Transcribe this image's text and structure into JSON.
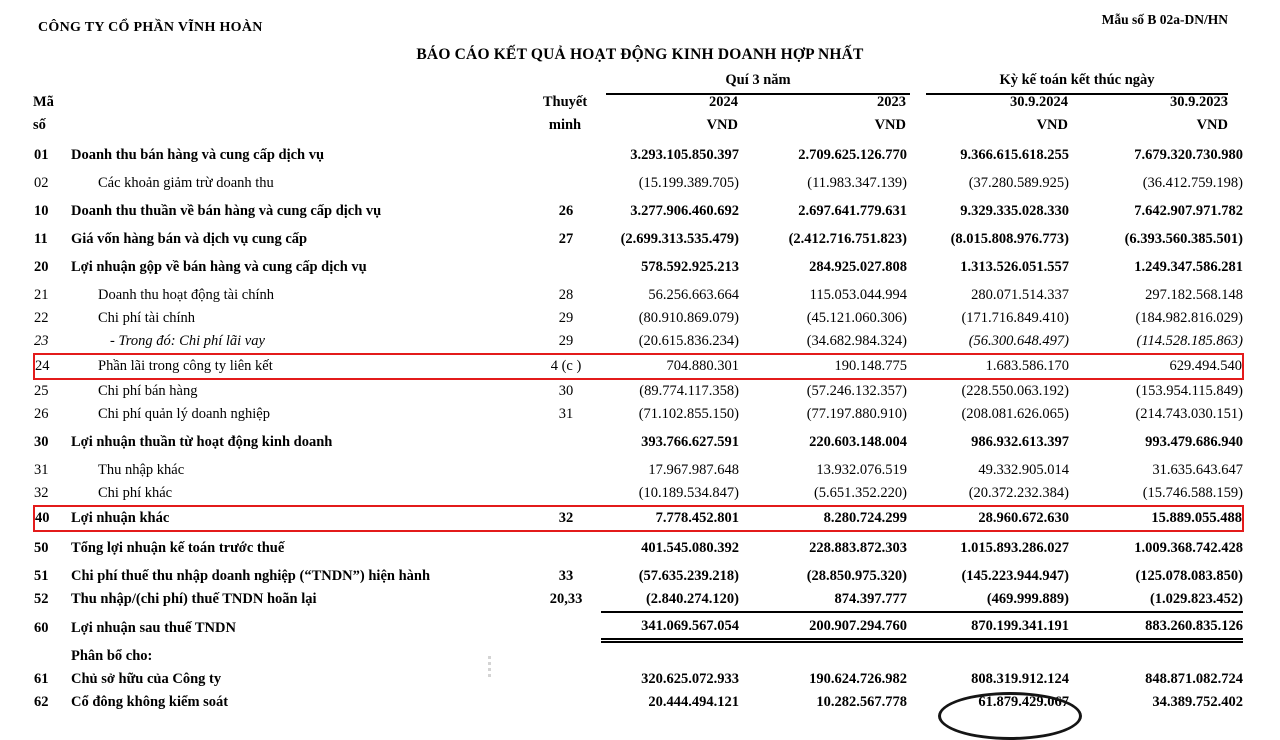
{
  "header": {
    "company": "CÔNG TY CỔ PHẦN VĨNH HOÀN",
    "form_number": "Mẫu số B 02a-DN/HN",
    "title": "BÁO CÁO KẾT QUẢ HOẠT ĐỘNG KINH DOANH HỢP NHẤT"
  },
  "columns": {
    "group_quarter": "Quí 3 năm",
    "group_ytd": "Kỳ kế toán kết thúc ngày",
    "code_line1": "Mã",
    "code_line2": "số",
    "note_line1": "Thuyết",
    "note_line2": "minh",
    "periods": [
      "2024",
      "2023",
      "30.9.2024",
      "30.9.2023"
    ],
    "currency": "VND"
  },
  "accent": {
    "highlight_border": "#e31b1b"
  },
  "table": {
    "rows": [
      {
        "code": "01",
        "label": "Doanh thu bán hàng và cung cấp dịch vụ",
        "note": "",
        "values": [
          "3.293.105.850.397",
          "2.709.625.126.770",
          "9.366.615.618.255",
          "7.679.320.730.980"
        ],
        "bold": true,
        "gap": false
      },
      {
        "code": "02",
        "label": "Các khoản giảm trừ doanh thu",
        "note": "",
        "values": [
          "(15.199.389.705)",
          "(11.983.347.139)",
          "(37.280.589.925)",
          "(36.412.759.198)"
        ],
        "indent": 1,
        "gap": true
      },
      {
        "code": "10",
        "label": "Doanh thu thuần về bán hàng và cung cấp dịch vụ",
        "note": "26",
        "values": [
          "3.277.906.460.692",
          "2.697.641.779.631",
          "9.329.335.028.330",
          "7.642.907.971.782"
        ],
        "bold": true,
        "gap": true
      },
      {
        "code": "11",
        "label": "Giá vốn hàng bán và dịch vụ cung cấp",
        "note": "27",
        "values": [
          "(2.699.313.535.479)",
          "(2.412.716.751.823)",
          "(8.015.808.976.773)",
          "(6.393.560.385.501)"
        ],
        "bold": true,
        "gap": true
      },
      {
        "code": "20",
        "label": "Lợi nhuận gộp về bán hàng và cung cấp dịch vụ",
        "note": "",
        "values": [
          "578.592.925.213",
          "284.925.027.808",
          "1.313.526.051.557",
          "1.249.347.586.281"
        ],
        "bold": true,
        "gap": true
      },
      {
        "code": "21",
        "label": "Doanh thu hoạt động tài chính",
        "note": "28",
        "values": [
          "56.256.663.664",
          "115.053.044.994",
          "280.071.514.337",
          "297.182.568.148"
        ],
        "indent": 1,
        "gap": true
      },
      {
        "code": "22",
        "label": "Chi phí tài chính",
        "note": "29",
        "values": [
          "(80.910.869.079)",
          "(45.121.060.306)",
          "(171.716.849.410)",
          "(184.982.816.029)"
        ],
        "indent": 1
      },
      {
        "code": "23",
        "label": "- Trong đó: Chi phí lãi vay",
        "note": "29",
        "values": [
          "(20.615.836.234)",
          "(34.682.984.324)",
          "(56.300.648.497)",
          "(114.528.185.863)"
        ],
        "indent": 2,
        "italic": true,
        "value_styles": [
          "norm",
          "norm",
          "ital",
          "ital"
        ]
      },
      {
        "code": "24",
        "label": "Phần lãi trong công ty liên kết",
        "note": "4 (c )",
        "values": [
          "704.880.301",
          "190.148.775",
          "1.683.586.170",
          "629.494.540"
        ],
        "indent": 1,
        "highlight": true
      },
      {
        "code": "25",
        "label": "Chi phí bán hàng",
        "note": "30",
        "values": [
          "(89.774.117.358)",
          "(57.246.132.357)",
          "(228.550.063.192)",
          "(153.954.115.849)"
        ],
        "indent": 1
      },
      {
        "code": "26",
        "label": "Chi phí quản lý doanh nghiệp",
        "note": "31",
        "values": [
          "(71.102.855.150)",
          "(77.197.880.910)",
          "(208.081.626.065)",
          "(214.743.030.151)"
        ],
        "indent": 1
      },
      {
        "code": "30",
        "label": "Lợi nhuận thuần từ hoạt động kinh doanh",
        "note": "",
        "values": [
          "393.766.627.591",
          "220.603.148.004",
          "986.932.613.397",
          "993.479.686.940"
        ],
        "bold": true,
        "gap": true
      },
      {
        "code": "31",
        "label": "Thu nhập khác",
        "note": "",
        "values": [
          "17.967.987.648",
          "13.932.076.519",
          "49.332.905.014",
          "31.635.643.647"
        ],
        "indent": 1,
        "gap": true
      },
      {
        "code": "32",
        "label": "Chi phí khác",
        "note": "",
        "values": [
          "(10.189.534.847)",
          "(5.651.352.220)",
          "(20.372.232.384)",
          "(15.746.588.159)"
        ],
        "indent": 1
      },
      {
        "code": "40",
        "label": "Lợi nhuận khác",
        "note": "32",
        "values": [
          "7.778.452.801",
          "8.280.724.299",
          "28.960.672.630",
          "15.889.055.488"
        ],
        "bold": true,
        "highlight": true
      },
      {
        "code": "50",
        "label": "Tổng lợi nhuận kế toán trước thuế",
        "note": "",
        "values": [
          "401.545.080.392",
          "228.883.872.303",
          "1.015.893.286.027",
          "1.009.368.742.428"
        ],
        "bold": true,
        "gap": true
      },
      {
        "code": "51",
        "label": "Chi phí thuế thu nhập doanh nghiệp (“TNDN”) hiện hành",
        "note": "33",
        "values": [
          "(57.635.239.218)",
          "(28.850.975.320)",
          "(145.223.944.947)",
          "(125.078.083.850)"
        ],
        "bold": true,
        "gap": true
      },
      {
        "code": "52",
        "label": "Thu nhập/(chi phí) thuế TNDN hoãn lại",
        "note": "20,33",
        "values": [
          "(2.840.274.120)",
          "874.397.777",
          "(469.999.889)",
          "(1.029.823.452)"
        ],
        "bold": true,
        "value_styles": [
          "norm",
          "norm",
          "norm",
          "norm"
        ]
      },
      {
        "code": "60",
        "label": "Lợi nhuận sau thuế TNDN",
        "note": "",
        "values": [
          "341.069.567.054",
          "200.907.294.760",
          "870.199.341.191",
          "883.260.835.126"
        ],
        "bold": true,
        "total": true,
        "gap": true
      },
      {
        "code": "",
        "label": "Phân bổ cho:",
        "note": "",
        "values": [
          "",
          "",
          "",
          ""
        ],
        "bold": true,
        "gap": true
      },
      {
        "code": "61",
        "label": "Chủ sở hữu của Công ty",
        "note": "",
        "values": [
          "320.625.072.933",
          "190.624.726.982",
          "808.319.912.124",
          "848.871.082.724"
        ],
        "bold": true
      },
      {
        "code": "62",
        "label": "Cổ đông không kiểm soát",
        "note": "",
        "values": [
          "20.444.494.121",
          "10.282.567.778",
          "61.879.429.067",
          "34.389.752.402"
        ],
        "bold": true
      }
    ]
  },
  "annotations": {
    "highlighted_row_codes": [
      "24",
      "40"
    ],
    "circle_mark": "partial hand-drawn ellipse at bottom under 61.879.429.067"
  }
}
